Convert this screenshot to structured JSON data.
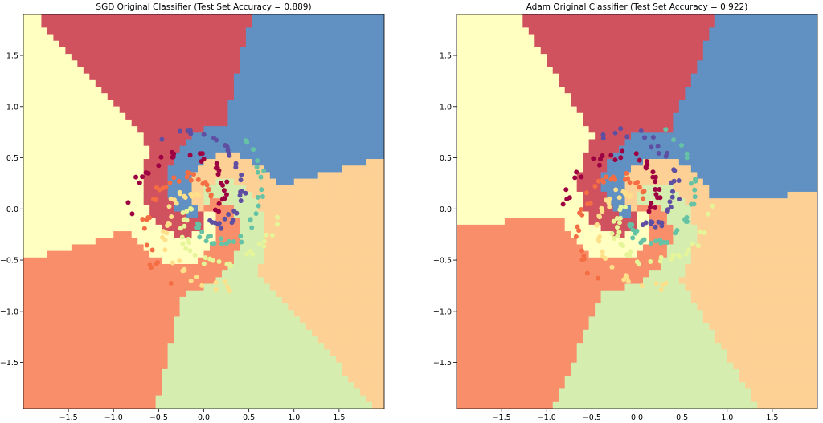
{
  "chart_data": [
    {
      "type": "scatter",
      "title": "SGD Original Classifier (Test Set Accuracy = 0.889)",
      "xlim": [
        -2.0,
        2.0
      ],
      "ylim": [
        -1.95,
        1.9
      ],
      "x_ticks": [
        "−1.5",
        "−1.0",
        "−0.5",
        "0.0",
        "0.5",
        "1.0",
        "1.5"
      ],
      "x_tick_values": [
        -1.5,
        -1.0,
        -0.5,
        0.0,
        0.5,
        1.0,
        1.5
      ],
      "y_ticks": [
        "1.5",
        "1.0",
        "0.5",
        "0.0",
        "−0.5",
        "−1.0",
        "−1.5"
      ],
      "y_tick_values": [
        1.5,
        1.0,
        0.5,
        0.0,
        -0.5,
        -1.0,
        -1.5
      ],
      "background": "decision-regions",
      "n_classes": 6,
      "class_colors": [
        "#9e0142",
        "#f46d43",
        "#fee08b",
        "#e6f598",
        "#66c2a5",
        "#5e4fa2"
      ],
      "region_colors": [
        "#d0525f",
        "#f88f6a",
        "#fdd195",
        "#d5eeb0",
        "#ffffc2",
        "#6190c2"
      ],
      "model": "sgd"
    },
    {
      "type": "scatter",
      "title": "Adam Original Classifier (Test Set Accuracy = 0.922)",
      "xlim": [
        -2.0,
        2.0
      ],
      "ylim": [
        -1.95,
        1.9
      ],
      "x_ticks": [
        "−1.5",
        "−1.0",
        "−0.5",
        "0.0",
        "0.5",
        "1.0",
        "1.5"
      ],
      "x_tick_values": [
        -1.5,
        -1.0,
        -0.5,
        0.0,
        0.5,
        1.0,
        1.5
      ],
      "y_ticks": [
        "1.5",
        "1.0",
        "0.5",
        "0.0",
        "−0.5",
        "−1.0",
        "−1.5"
      ],
      "y_tick_values": [
        1.5,
        1.0,
        0.5,
        0.0,
        -0.5,
        -1.0,
        -1.5
      ],
      "background": "decision-regions",
      "n_classes": 6,
      "class_colors": [
        "#9e0142",
        "#f46d43",
        "#fee08b",
        "#e6f598",
        "#66c2a5",
        "#5e4fa2"
      ],
      "region_colors": [
        "#d0525f",
        "#f88f6a",
        "#fdd195",
        "#d5eeb0",
        "#ffffc2",
        "#6190c2"
      ],
      "model": "adam"
    }
  ]
}
